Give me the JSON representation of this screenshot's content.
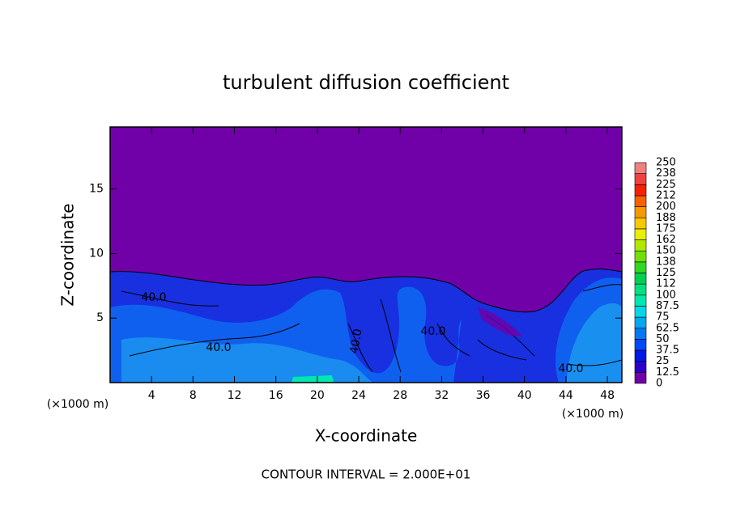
{
  "chart_data": {
    "type": "contour",
    "title": "turbulent diffusion coefficient",
    "x_label": "X-coordinate",
    "y_label": "Z-coordinate",
    "x_unit_label": "(×1000 m)",
    "y_unit_label": "(×1000 m)",
    "xlim": [
      0,
      49.4
    ],
    "xticks": [
      4,
      8,
      12,
      16,
      20,
      24,
      28,
      32,
      36,
      40,
      44,
      48
    ],
    "ylim": [
      0,
      19.8
    ],
    "yticks": [
      5,
      10,
      15
    ],
    "colorbar": {
      "levels": [
        0,
        12.5,
        25,
        37.5,
        50,
        62.5,
        75,
        87.5,
        100,
        112,
        125,
        138,
        150,
        162,
        175,
        188,
        200,
        212,
        225,
        238,
        250
      ],
      "colors": [
        "#7000a8",
        "#2a00c8",
        "#0018e8",
        "#0048f8",
        "#0078f8",
        "#00a8f0",
        "#00d8e8",
        "#00e8b0",
        "#00e080",
        "#00d050",
        "#30d820",
        "#70e000",
        "#b0e800",
        "#e8f000",
        "#f8c800",
        "#f89800",
        "#f86000",
        "#f82000",
        "#f04040",
        "#f08080"
      ]
    },
    "contour_labels": [
      "40.0",
      "40.0",
      "40.0",
      "40.0",
      "40.0"
    ],
    "note": "CONTOUR INTERVAL = 2.000E+01"
  }
}
